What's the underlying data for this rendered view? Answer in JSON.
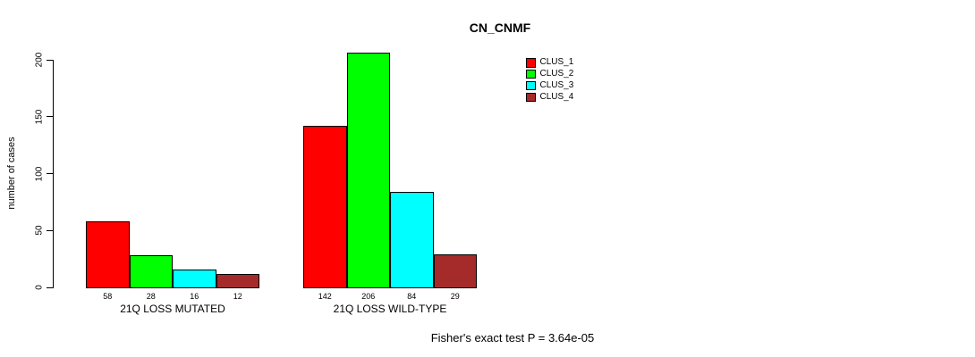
{
  "chart_data": {
    "type": "bar",
    "title": "CN_CNMF",
    "ylabel": "number of cases",
    "xlabel": "",
    "yticks": [
      0,
      50,
      100,
      150,
      200
    ],
    "ylim": [
      0,
      206
    ],
    "grid": false,
    "legend_position": "top-right",
    "categories": [
      "21Q LOSS MUTATED",
      "21Q LOSS WILD-TYPE"
    ],
    "series": [
      {
        "name": "CLUS_1",
        "color": "#ff0000",
        "values": [
          58,
          142
        ]
      },
      {
        "name": "CLUS_2",
        "color": "#00ff00",
        "values": [
          28,
          206
        ]
      },
      {
        "name": "CLUS_3",
        "color": "#00ffff",
        "values": [
          16,
          84
        ]
      },
      {
        "name": "CLUS_4",
        "color": "#a52a2a",
        "values": [
          12,
          29
        ]
      }
    ],
    "bar_value_labels": [
      [
        "58",
        "28",
        "16",
        "12"
      ],
      [
        "142",
        "206",
        "84",
        "29"
      ]
    ],
    "annotation": "Fisher's exact test P = 3.64e-05"
  },
  "colors": {
    "background": "#ffffff",
    "axis": "#000000",
    "text": "#000000"
  }
}
